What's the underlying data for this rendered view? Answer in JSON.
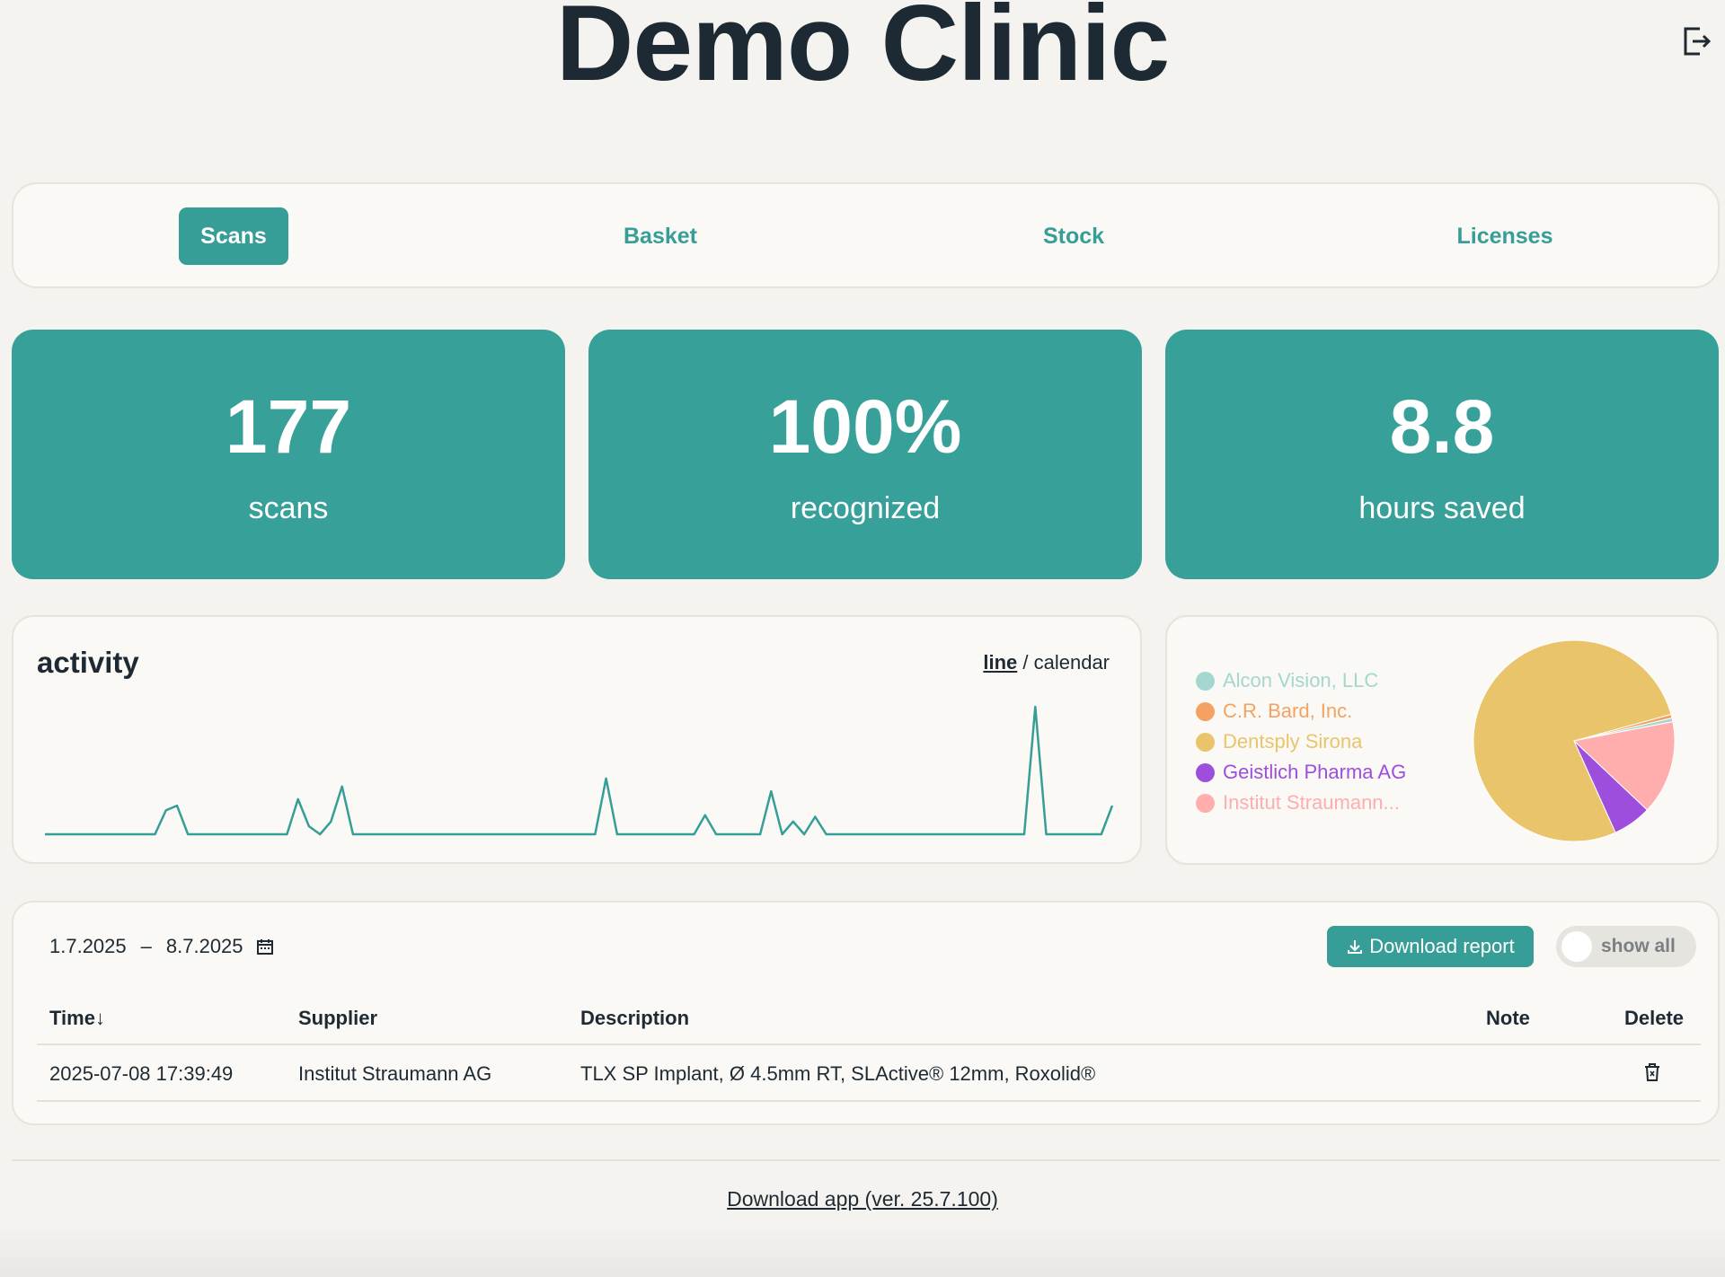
{
  "header": {
    "title": "Demo Clinic",
    "logout_icon": "logout-icon"
  },
  "tabs": [
    {
      "label": "Scans",
      "active": true
    },
    {
      "label": "Basket",
      "active": false
    },
    {
      "label": "Stock",
      "active": false
    },
    {
      "label": "Licenses",
      "active": false
    }
  ],
  "stats": [
    {
      "value": "177",
      "label": "scans"
    },
    {
      "value": "100%",
      "label": "recognized"
    },
    {
      "value": "8.8",
      "label": "hours saved"
    }
  ],
  "activity": {
    "title": "activity",
    "view_line": "line",
    "view_separator": " / ",
    "view_calendar": "calendar"
  },
  "suppliers": {
    "legend": [
      {
        "label": "Alcon Vision, LLC",
        "color": "#a5d6cf"
      },
      {
        "label": "C.R. Bard, Inc.",
        "color": "#f4a261"
      },
      {
        "label": "Dentsply Sirona",
        "color": "#e9c46a"
      },
      {
        "label": "Geistlich Pharma AG",
        "color": "#9d4edd"
      },
      {
        "label": "Institut Straumann...",
        "color": "#ffadad"
      }
    ]
  },
  "chart_data": [
    {
      "type": "line",
      "title": "activity",
      "x": [
        0,
        1,
        2,
        3,
        4,
        5,
        6,
        7,
        8,
        9,
        10,
        11,
        12,
        13,
        14,
        15,
        16,
        17,
        18,
        19,
        20,
        21,
        22,
        23,
        24,
        25,
        26,
        27,
        28,
        29,
        30,
        31,
        32,
        33,
        34,
        35,
        36,
        37,
        38,
        39,
        40,
        41,
        42,
        43,
        44,
        45,
        46,
        47,
        48,
        49,
        50,
        51,
        52,
        53,
        54,
        55,
        56,
        57,
        58,
        59,
        60,
        61,
        62,
        63,
        64,
        65,
        66,
        67,
        68,
        69,
        70,
        71,
        72,
        73,
        74,
        75,
        76,
        77,
        78,
        79,
        80,
        81,
        82,
        83,
        84,
        85,
        86,
        87,
        88,
        89,
        90,
        91,
        92,
        93,
        94,
        95,
        96,
        97
      ],
      "series": [
        {
          "values": [
            0,
            0,
            0,
            0,
            0,
            0,
            0,
            0,
            0,
            0,
            0,
            1.5,
            1.8,
            0,
            0,
            0,
            0,
            0,
            0,
            0,
            0,
            0,
            0,
            2.2,
            0.5,
            0,
            0.8,
            3.0,
            0,
            0,
            0,
            0,
            0,
            0,
            0,
            0,
            0,
            0,
            0,
            0,
            0,
            0,
            0,
            0,
            0,
            0,
            0,
            0,
            0,
            0,
            0,
            3.5,
            0,
            0,
            0,
            0,
            0,
            0,
            0,
            0,
            1.2,
            0,
            0,
            0,
            0,
            0,
            2.7,
            0,
            0.8,
            0,
            1.1,
            0,
            0,
            0,
            0,
            0,
            0,
            0,
            0,
            0,
            0,
            0,
            0,
            0,
            0,
            0,
            0,
            0,
            0,
            0,
            8.0,
            0,
            0,
            0,
            0,
            0,
            0,
            1.8
          ],
          "color": "#369e97"
        }
      ]
    },
    {
      "type": "pie",
      "categories": [
        "Alcon Vision, LLC",
        "C.R. Bard, Inc.",
        "Dentsply Sirona",
        "Geistlich Pharma AG",
        "Institut Straumann..."
      ],
      "values": [
        0.6,
        0.6,
        77.5,
        6.2,
        15.1
      ],
      "colors": [
        "#a5d6cf",
        "#f4a261",
        "#e9c46a",
        "#9d4edd",
        "#ffadad"
      ]
    }
  ],
  "filters": {
    "date_from": "1.7.2025",
    "date_sep": "–",
    "date_to": "8.7.2025",
    "download_report": "Download report",
    "show_all": "show all"
  },
  "table": {
    "columns": [
      "Time↓",
      "Supplier",
      "Description",
      "Note",
      "Delete"
    ],
    "rows": [
      {
        "time": "2025-07-08 17:39:49",
        "supplier": "Institut Straumann AG",
        "description": "TLX SP Implant, Ø 4.5mm RT, SLActive® 12mm, Roxolid®",
        "note": ""
      }
    ]
  },
  "footer": {
    "download_app": "Download app (ver. 25.7.100)"
  }
}
